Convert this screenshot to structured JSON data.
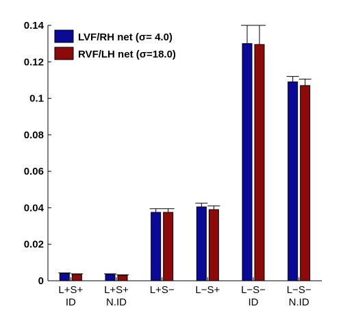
{
  "chart_data": {
    "type": "bar",
    "categories": [
      [
        "L+S+",
        "ID"
      ],
      [
        "L+S+",
        "N.ID"
      ],
      [
        "L+S−"
      ],
      [
        "L−S+"
      ],
      [
        "L−S−",
        "ID"
      ],
      [
        "L−S−",
        "N.ID"
      ]
    ],
    "series": [
      {
        "name": "LVF/RH net (σ= 4.0)",
        "color": "#0a0a96",
        "values": [
          0.004,
          0.0035,
          0.0375,
          0.0405,
          0.13,
          0.109
        ],
        "errors": [
          0.0003,
          0.0003,
          0.002,
          0.002,
          0.01,
          0.003
        ]
      },
      {
        "name": "RVF/LH net (σ=18.0)",
        "color": "#8c0a0a",
        "values": [
          0.0035,
          0.003,
          0.0375,
          0.039,
          0.1295,
          0.107
        ],
        "errors": [
          0.0003,
          0.0003,
          0.002,
          0.002,
          0.0105,
          0.0035
        ]
      }
    ],
    "yticks": [
      "0",
      "0.02",
      "0.04",
      "0.06",
      "0.08",
      "0.1",
      "0.12",
      "0.14"
    ],
    "ylim": [
      0,
      0.14
    ],
    "title": "",
    "xlabel": "",
    "ylabel": "",
    "legend_position": "top-left",
    "grid": false
  }
}
